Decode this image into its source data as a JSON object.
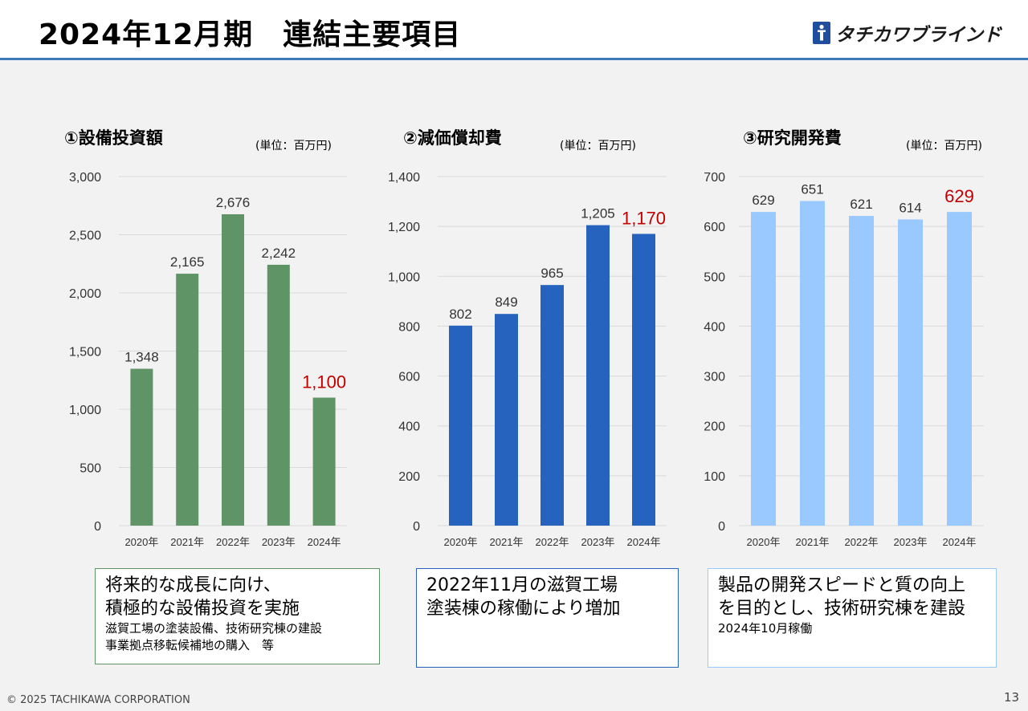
{
  "header": {
    "title": "2024年12月期　連結主要項目",
    "logo_text": "タチカワブラインド",
    "logo_icon": "blind-logo-icon"
  },
  "charts": [
    {
      "title": "①設備投資額",
      "unit": "(単位：百万円)"
    },
    {
      "title": "②減価償却費",
      "unit": "(単位：百万円)"
    },
    {
      "title": "③研究開発費",
      "unit": "(単位：百万円)"
    }
  ],
  "chart_data": [
    {
      "type": "bar",
      "title": "①設備投資額",
      "unit": "(単位：百万円)",
      "categories": [
        "2020年",
        "2021年",
        "2022年",
        "2023年",
        "2024年"
      ],
      "values": [
        1348,
        2165,
        2676,
        2242,
        1100
      ],
      "value_labels": [
        "1,348",
        "2,165",
        "2,676",
        "2,242",
        "1,100"
      ],
      "ylim": [
        0,
        3000
      ],
      "yticks": [
        "0",
        "500",
        "1,000",
        "1,500",
        "2,000",
        "2,500",
        "3,000"
      ],
      "bar_color": "#5f9466",
      "highlight_index": 4,
      "highlight_color": "#c00000",
      "grid": true
    },
    {
      "type": "bar",
      "title": "②減価償却費",
      "unit": "(単位：百万円)",
      "categories": [
        "2020年",
        "2021年",
        "2022年",
        "2023年",
        "2024年"
      ],
      "values": [
        802,
        849,
        965,
        1205,
        1170
      ],
      "value_labels": [
        "802",
        "849",
        "965",
        "1,205",
        "1,170"
      ],
      "ylim": [
        0,
        1400
      ],
      "yticks": [
        "0",
        "200",
        "400",
        "600",
        "800",
        "1,000",
        "1,200",
        "1,400"
      ],
      "bar_color": "#2563be",
      "highlight_index": 4,
      "highlight_color": "#c00000",
      "grid": true
    },
    {
      "type": "bar",
      "title": "③研究開発費",
      "unit": "(単位：百万円)",
      "categories": [
        "2020年",
        "2021年",
        "2022年",
        "2023年",
        "2024年"
      ],
      "values": [
        629,
        651,
        621,
        614,
        629
      ],
      "value_labels": [
        "629",
        "651",
        "621",
        "614",
        "629"
      ],
      "ylim": [
        0,
        700
      ],
      "yticks": [
        "0",
        "100",
        "200",
        "300",
        "400",
        "500",
        "600",
        "700"
      ],
      "bar_color": "#99c9ff",
      "highlight_index": 4,
      "highlight_color": "#c00000",
      "grid": true
    }
  ],
  "notes": [
    {
      "line1": "将来的な成長に向け、",
      "line2": "積極的な設備投資を実施",
      "sub1": "滋賀工場の塗装設備、技術研究棟の建設",
      "sub2": "事業拠点移転候補地の購入　等",
      "border_color": "#5f9466"
    },
    {
      "line1": "2022年11月の滋賀工場",
      "line2": "塗装棟の稼働により増加",
      "border_color": "#2563be"
    },
    {
      "line1": "製品の開発スピードと質の向上",
      "line2": "を目的とし、技術研究棟を建設",
      "sub1": "2024年10月稼働",
      "border_color": "#99c9ff"
    }
  ],
  "footer": {
    "copyright": "© 2025 TACHIKAWA CORPORATION",
    "page_number": "13"
  }
}
